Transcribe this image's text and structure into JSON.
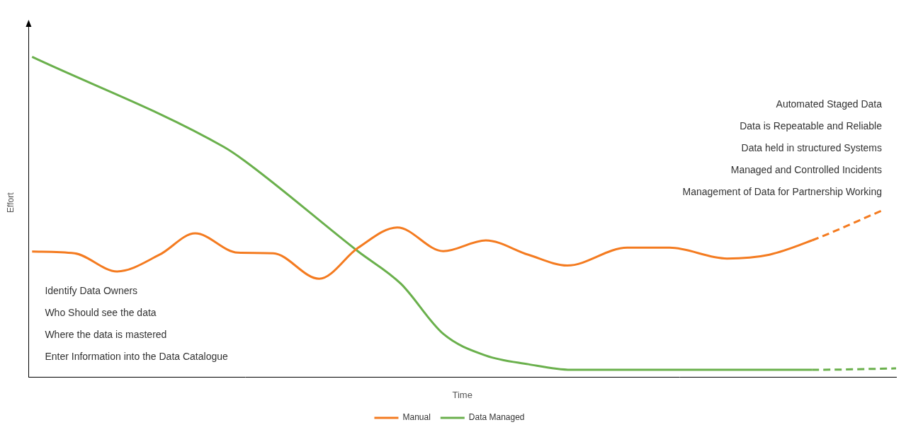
{
  "chart_data": {
    "type": "line",
    "x_label": "Time",
    "y_label": "Effort",
    "xlim": [
      0,
      100
    ],
    "ylim": [
      0,
      100
    ],
    "tick_labels": false,
    "grid": false,
    "legend": "bottom",
    "series": [
      {
        "name": "Manual",
        "color": "#f47b20",
        "x": [
          0.4,
          5.3,
          10.2,
          15.1,
          19.2,
          24.1,
          28.2,
          33.5,
          38,
          42.5,
          47.8,
          52.7,
          57.6,
          62.1,
          69,
          73.9,
          80.5,
          85.4,
          90.3,
          98.4
        ],
        "values": [
          36,
          35.5,
          30.3,
          35.1,
          41.2,
          35.7,
          35.5,
          28.2,
          37.1,
          42.9,
          36.1,
          39.2,
          35.1,
          32,
          37.1,
          37.1,
          34,
          35.1,
          39.2,
          47.8
        ]
      },
      {
        "name": "Data Managed",
        "color": "#6ab04c",
        "x": [
          0.4,
          22.5,
          24.9,
          38,
          42.9,
          47.8,
          52.7,
          57.6,
          62.5,
          90.3,
          100
        ],
        "values": [
          91.8,
          66,
          62,
          36,
          26.8,
          12.4,
          6.2,
          3.7,
          2.1,
          2.1,
          2.5
        ]
      }
    ],
    "annotations": [
      [
        "Identify Data Owners",
        "Who Should see the data",
        "Where the data is mastered",
        "Enter Information into the Data Catalogue"
      ],
      [
        "Automated Staged Data",
        "Data is Repeatable and Reliable",
        "Data held in structured Systems",
        "Managed and Controlled Incidents",
        "Management of Data for Partnership Working"
      ]
    ]
  }
}
